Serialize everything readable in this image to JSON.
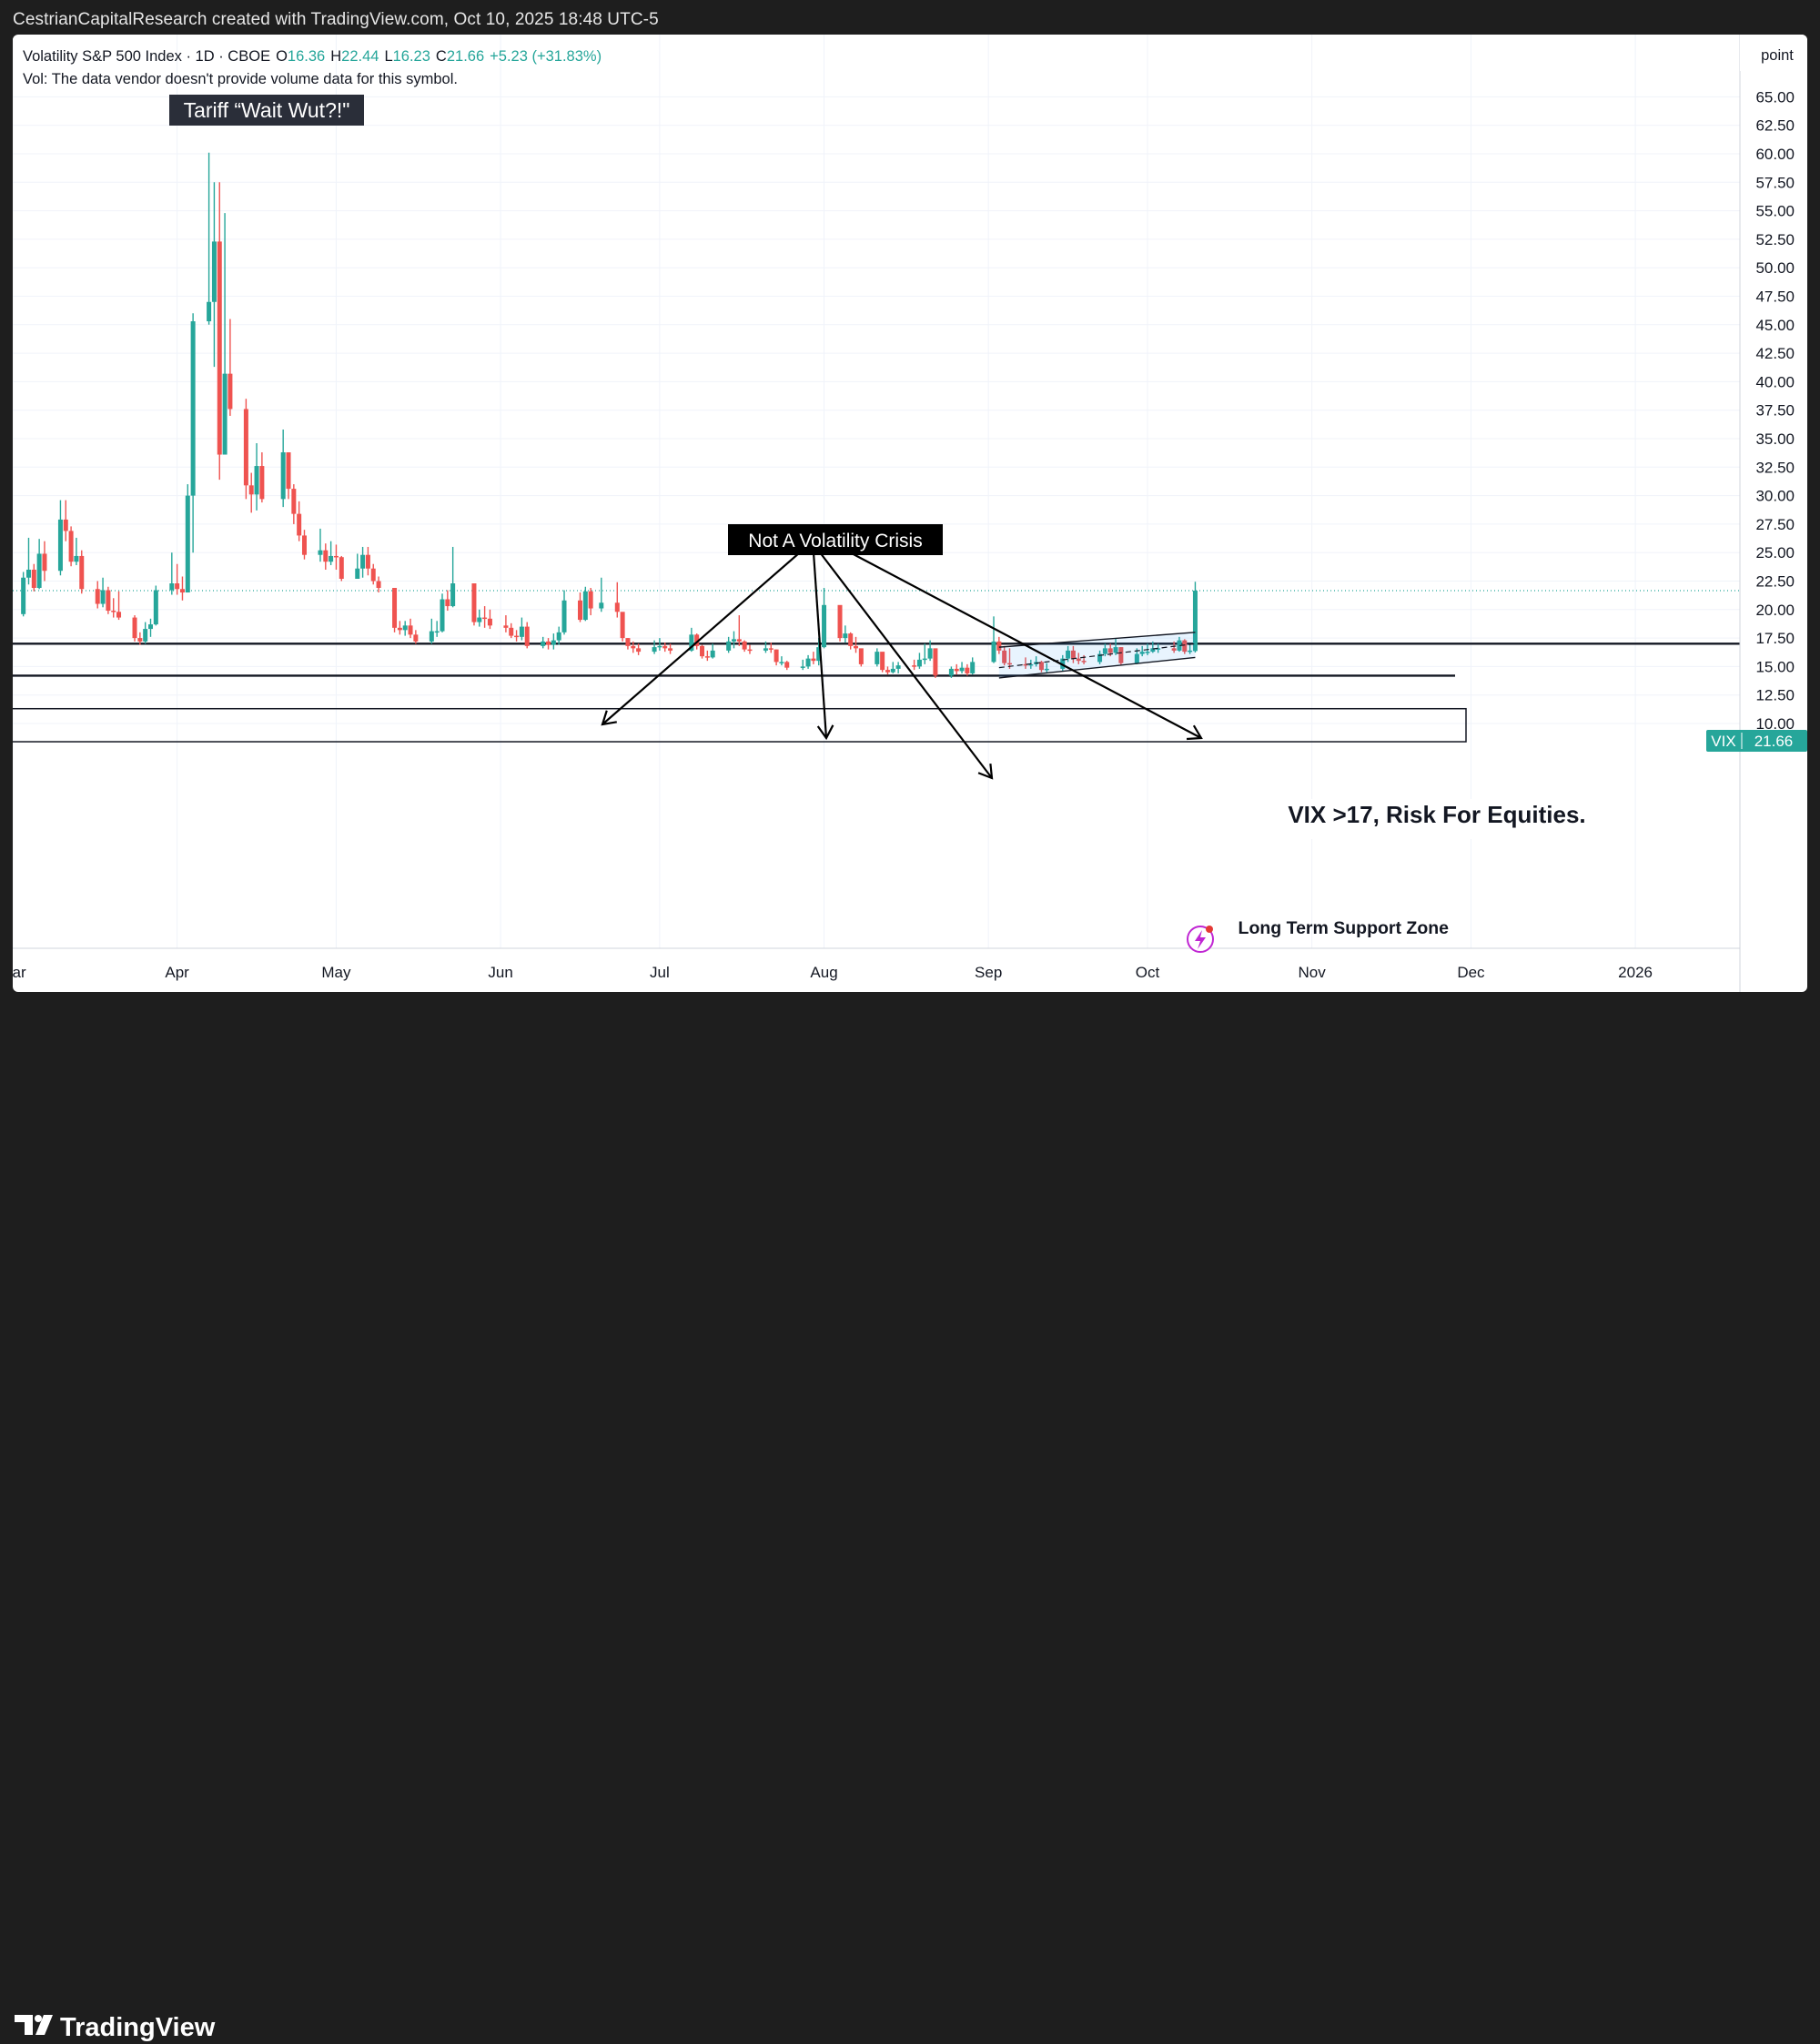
{
  "watermark": "CestrianCapitalResearch created with TradingView.com, Oct 10, 2025 18:48 UTC-5",
  "legend": {
    "symbol": "Volatility S&P 500 Index · 1D · CBOE",
    "o_label": "O",
    "o_value": "16.36",
    "h_label": "H",
    "h_value": "22.44",
    "l_label": "L",
    "l_value": "16.23",
    "c_label": "C",
    "c_value": "21.66",
    "change": "+5.23 (+31.83%)",
    "vol_note": "Vol: The data vendor doesn't provide volume data for this symbol."
  },
  "scale_mode": "point",
  "price_tag": {
    "symbol": "VIX",
    "value": "21.66"
  },
  "annotations": {
    "tariff": "Tariff “Wait Wut?!\"",
    "crisis": "Not A Volatility Crisis",
    "risk": "VIX >17, Risk For Equities.",
    "support": "Long Term Support Zone"
  },
  "brand": "TradingView",
  "colors": {
    "up": "#26a69a",
    "down": "#ef5350",
    "background": "#ffffff",
    "frame": "#1e1e1e",
    "tag": "#26a69a"
  },
  "chart_data": {
    "type": "candlestick",
    "title": "Volatility S&P 500 Index · 1D · CBOE",
    "ylim": [
      8,
      65
    ],
    "y_ticks": [
      "10.00",
      "12.50",
      "15.00",
      "17.50",
      "20.00",
      "22.50",
      "25.00",
      "27.50",
      "30.00",
      "32.50",
      "35.00",
      "37.50",
      "40.00",
      "42.50",
      "45.00",
      "47.50",
      "50.00",
      "52.50",
      "55.00",
      "57.50",
      "60.00",
      "62.50",
      "65.00"
    ],
    "x_ticks": [
      "Mar",
      "Apr",
      "May",
      "Jun",
      "Jul",
      "Aug",
      "Sep",
      "Oct",
      "Nov",
      "Dec",
      "2026"
    ],
    "x_tick_dates": [
      "2025-03-01",
      "2025-04-01",
      "2025-05-01",
      "2025-06-01",
      "2025-07-01",
      "2025-08-01",
      "2025-09-01",
      "2025-10-01",
      "2025-11-01",
      "2025-12-01",
      "2026-01-01"
    ],
    "horizontal_levels": [
      17.0,
      14.2
    ],
    "support_zone": [
      8.4,
      11.3
    ],
    "channel": {
      "upper": [
        [
          "2025-09-03",
          16.7
        ],
        [
          "2025-10-10",
          18.0
        ]
      ],
      "mid": [
        [
          "2025-09-03",
          14.9
        ],
        [
          "2025-10-10",
          17.0
        ]
      ],
      "lower": [
        [
          "2025-09-03",
          14.0
        ],
        [
          "2025-10-10",
          15.8
        ]
      ]
    },
    "candles": [
      [
        "2025-02-28",
        21.5,
        19.6,
        22.0,
        19.3
      ],
      [
        "2025-03-03",
        19.6,
        22.8,
        23.3,
        19.4
      ],
      [
        "2025-03-04",
        22.8,
        23.5,
        26.3,
        22.2
      ],
      [
        "2025-03-05",
        23.5,
        21.9,
        24.0,
        21.6
      ],
      [
        "2025-03-06",
        21.9,
        24.9,
        26.2,
        21.8
      ],
      [
        "2025-03-07",
        24.9,
        23.4,
        26.0,
        22.5
      ],
      [
        "2025-03-10",
        23.4,
        27.9,
        29.6,
        23.0
      ],
      [
        "2025-03-11",
        27.9,
        26.9,
        29.6,
        26.0
      ],
      [
        "2025-03-12",
        26.9,
        24.2,
        27.3,
        23.8
      ],
      [
        "2025-03-13",
        24.2,
        24.7,
        26.3,
        23.9
      ],
      [
        "2025-03-14",
        24.7,
        21.8,
        25.2,
        21.4
      ],
      [
        "2025-03-17",
        21.8,
        20.5,
        22.5,
        20.1
      ],
      [
        "2025-03-18",
        20.5,
        21.7,
        22.8,
        20.2
      ],
      [
        "2025-03-19",
        21.7,
        19.9,
        22.0,
        19.6
      ],
      [
        "2025-03-20",
        19.9,
        19.8,
        21.0,
        19.3
      ],
      [
        "2025-03-21",
        19.8,
        19.3,
        21.6,
        19.1
      ],
      [
        "2025-03-24",
        19.3,
        17.5,
        19.5,
        17.2
      ],
      [
        "2025-03-25",
        17.5,
        17.2,
        18.0,
        16.9
      ],
      [
        "2025-03-26",
        17.2,
        18.3,
        18.9,
        17.0
      ],
      [
        "2025-03-27",
        18.3,
        18.7,
        19.2,
        17.6
      ],
      [
        "2025-03-28",
        18.7,
        21.7,
        22.1,
        18.6
      ],
      [
        "2025-03-31",
        21.7,
        22.3,
        25.0,
        21.3
      ],
      [
        "2025-04-01",
        22.3,
        21.8,
        24.0,
        21.3
      ],
      [
        "2025-04-02",
        21.8,
        21.5,
        22.9,
        20.8
      ],
      [
        "2025-04-03",
        21.5,
        30.0,
        31.0,
        21.5
      ],
      [
        "2025-04-04",
        30.0,
        45.3,
        46.0,
        25.0
      ],
      [
        "2025-04-07",
        45.3,
        47.0,
        60.1,
        45.0
      ],
      [
        "2025-04-08",
        47.0,
        52.3,
        57.5,
        41.3
      ],
      [
        "2025-04-09",
        52.3,
        33.6,
        57.5,
        31.4
      ],
      [
        "2025-04-10",
        33.6,
        40.7,
        54.8,
        33.6
      ],
      [
        "2025-04-11",
        40.7,
        37.6,
        45.5,
        37.0
      ],
      [
        "2025-04-14",
        37.6,
        30.9,
        38.5,
        29.7
      ],
      [
        "2025-04-15",
        30.9,
        30.1,
        32.0,
        28.5
      ],
      [
        "2025-04-16",
        30.1,
        32.6,
        34.6,
        28.7
      ],
      [
        "2025-04-17",
        32.6,
        29.7,
        33.8,
        29.4
      ],
      [
        "2025-04-21",
        29.7,
        33.8,
        35.8,
        29.0
      ],
      [
        "2025-04-22",
        33.8,
        30.6,
        32.5,
        29.7
      ],
      [
        "2025-04-23",
        30.6,
        28.4,
        31.0,
        27.5
      ],
      [
        "2025-04-24",
        28.4,
        26.5,
        29.5,
        26.0
      ],
      [
        "2025-04-25",
        26.5,
        24.8,
        27.0,
        24.4
      ],
      [
        "2025-04-28",
        24.8,
        25.2,
        27.1,
        24.2
      ],
      [
        "2025-04-29",
        25.2,
        24.2,
        25.8,
        23.5
      ],
      [
        "2025-04-30",
        24.2,
        24.7,
        26.0,
        23.9
      ],
      [
        "2025-05-01",
        24.7,
        24.6,
        25.7,
        23.5
      ],
      [
        "2025-05-02",
        24.6,
        22.7,
        24.7,
        22.5
      ],
      [
        "2025-05-05",
        22.7,
        23.6,
        24.9,
        22.7
      ],
      [
        "2025-05-06",
        23.6,
        24.8,
        25.5,
        22.8
      ],
      [
        "2025-05-07",
        24.8,
        23.6,
        25.5,
        23.0
      ],
      [
        "2025-05-08",
        23.6,
        22.5,
        24.0,
        22.2
      ],
      [
        "2025-05-09",
        22.5,
        21.9,
        22.9,
        21.5
      ],
      [
        "2025-05-12",
        21.9,
        18.4,
        19.8,
        18.0
      ],
      [
        "2025-05-13",
        18.4,
        18.2,
        19.0,
        17.8
      ],
      [
        "2025-05-14",
        18.2,
        18.6,
        19.0,
        17.7
      ],
      [
        "2025-05-15",
        18.6,
        17.8,
        19.2,
        17.5
      ],
      [
        "2025-05-16",
        17.8,
        17.2,
        18.2,
        17.0
      ],
      [
        "2025-05-19",
        17.2,
        18.1,
        19.2,
        17.0
      ],
      [
        "2025-05-20",
        18.1,
        18.1,
        19.0,
        17.6
      ],
      [
        "2025-05-21",
        18.1,
        20.9,
        21.4,
        18.0
      ],
      [
        "2025-05-22",
        20.9,
        20.3,
        21.7,
        19.9
      ],
      [
        "2025-05-23",
        20.3,
        22.3,
        25.5,
        20.2
      ],
      [
        "2025-05-27",
        22.3,
        18.9,
        20.5,
        18.6
      ],
      [
        "2025-05-28",
        18.9,
        19.3,
        20.0,
        18.5
      ],
      [
        "2025-05-29",
        19.3,
        19.2,
        20.3,
        18.4
      ],
      [
        "2025-05-30",
        19.2,
        18.6,
        20.0,
        18.3
      ],
      [
        "2025-06-02",
        18.6,
        18.4,
        19.5,
        18.0
      ],
      [
        "2025-06-03",
        18.4,
        17.7,
        18.8,
        17.5
      ],
      [
        "2025-06-04",
        17.7,
        17.6,
        18.2,
        17.2
      ],
      [
        "2025-06-05",
        17.6,
        18.5,
        19.3,
        17.3
      ],
      [
        "2025-06-06",
        18.5,
        16.8,
        18.9,
        16.6
      ],
      [
        "2025-06-09",
        16.8,
        17.2,
        17.6,
        16.6
      ],
      [
        "2025-06-10",
        17.2,
        16.9,
        17.5,
        16.5
      ],
      [
        "2025-06-11",
        16.9,
        17.3,
        17.9,
        16.5
      ],
      [
        "2025-06-12",
        17.3,
        18.0,
        18.5,
        16.9
      ],
      [
        "2025-06-13",
        18.0,
        20.8,
        21.7,
        17.8
      ],
      [
        "2025-06-16",
        20.8,
        19.1,
        21.5,
        18.9
      ],
      [
        "2025-06-17",
        19.1,
        21.6,
        22.0,
        19.0
      ],
      [
        "2025-06-18",
        21.6,
        20.1,
        21.9,
        19.5
      ],
      [
        "2025-06-20",
        20.1,
        20.6,
        22.8,
        19.8
      ],
      [
        "2025-06-23",
        20.6,
        19.8,
        22.4,
        19.3
      ],
      [
        "2025-06-24",
        19.8,
        17.5,
        18.6,
        17.2
      ],
      [
        "2025-06-25",
        17.5,
        16.8,
        17.5,
        16.5
      ],
      [
        "2025-06-26",
        16.8,
        16.6,
        17.2,
        16.2
      ],
      [
        "2025-06-27",
        16.6,
        16.3,
        17.0,
        16.0
      ],
      [
        "2025-06-30",
        16.3,
        16.7,
        17.3,
        16.1
      ],
      [
        "2025-07-01",
        16.7,
        16.8,
        17.5,
        16.4
      ],
      [
        "2025-07-02",
        16.8,
        16.6,
        17.1,
        16.3
      ],
      [
        "2025-07-03",
        16.6,
        16.4,
        17.0,
        16.1
      ],
      [
        "2025-07-07",
        16.4,
        17.8,
        18.4,
        16.3
      ],
      [
        "2025-07-08",
        17.8,
        16.8,
        17.9,
        16.5
      ],
      [
        "2025-07-09",
        16.8,
        15.9,
        16.9,
        15.7
      ],
      [
        "2025-07-10",
        15.9,
        15.8,
        16.4,
        15.5
      ],
      [
        "2025-07-11",
        15.8,
        16.4,
        17.0,
        15.7
      ],
      [
        "2025-07-14",
        16.4,
        17.2,
        17.6,
        16.2
      ],
      [
        "2025-07-15",
        17.2,
        17.4,
        18.1,
        16.6
      ],
      [
        "2025-07-16",
        17.4,
        17.2,
        19.5,
        16.8
      ],
      [
        "2025-07-17",
        17.2,
        16.5,
        17.3,
        16.3
      ],
      [
        "2025-07-18",
        16.5,
        16.4,
        16.9,
        16.1
      ],
      [
        "2025-07-21",
        16.4,
        16.6,
        17.2,
        16.2
      ],
      [
        "2025-07-22",
        16.6,
        16.5,
        17.1,
        16.2
      ],
      [
        "2025-07-23",
        16.5,
        15.4,
        16.5,
        15.1
      ],
      [
        "2025-07-24",
        15.4,
        15.4,
        15.9,
        15.1
      ],
      [
        "2025-07-25",
        15.4,
        14.9,
        15.5,
        14.7
      ],
      [
        "2025-07-28",
        14.9,
        15.0,
        15.6,
        14.7
      ],
      [
        "2025-07-29",
        15.0,
        15.7,
        16.0,
        14.8
      ],
      [
        "2025-07-30",
        15.7,
        15.5,
        16.3,
        15.2
      ],
      [
        "2025-07-31",
        15.5,
        16.7,
        17.5,
        15.1
      ],
      [
        "2025-08-01",
        16.7,
        20.4,
        21.9,
        16.6
      ],
      [
        "2025-08-04",
        20.4,
        17.5,
        19.7,
        17.2
      ],
      [
        "2025-08-05",
        17.5,
        17.9,
        18.6,
        17.1
      ],
      [
        "2025-08-06",
        17.9,
        16.8,
        18.0,
        16.5
      ],
      [
        "2025-08-07",
        16.8,
        16.6,
        17.6,
        16.2
      ],
      [
        "2025-08-08",
        16.6,
        15.2,
        16.5,
        15.0
      ],
      [
        "2025-08-11",
        15.2,
        16.3,
        16.6,
        15.0
      ],
      [
        "2025-08-12",
        16.3,
        14.7,
        15.8,
        14.5
      ],
      [
        "2025-08-13",
        14.7,
        14.5,
        15.0,
        14.3
      ],
      [
        "2025-08-14",
        14.5,
        14.8,
        15.4,
        14.4
      ],
      [
        "2025-08-15",
        14.8,
        15.1,
        15.4,
        14.4
      ],
      [
        "2025-08-18",
        15.1,
        15.0,
        15.6,
        14.7
      ],
      [
        "2025-08-19",
        15.0,
        15.6,
        16.2,
        14.8
      ],
      [
        "2025-08-20",
        15.6,
        15.7,
        17.0,
        15.2
      ],
      [
        "2025-08-21",
        15.7,
        16.6,
        17.3,
        15.5
      ],
      [
        "2025-08-22",
        16.6,
        14.2,
        15.3,
        14.0
      ],
      [
        "2025-08-25",
        14.2,
        14.8,
        15.0,
        14.0
      ],
      [
        "2025-08-26",
        14.8,
        14.6,
        15.2,
        14.3
      ],
      [
        "2025-08-27",
        14.6,
        14.9,
        15.4,
        14.4
      ],
      [
        "2025-08-28",
        14.9,
        14.4,
        15.2,
        14.2
      ],
      [
        "2025-08-29",
        14.4,
        15.4,
        15.8,
        14.3
      ],
      [
        "2025-09-02",
        15.4,
        17.2,
        19.4,
        15.3
      ],
      [
        "2025-09-03",
        17.2,
        16.4,
        17.6,
        16.1
      ],
      [
        "2025-09-04",
        16.4,
        15.3,
        16.8,
        15.1
      ],
      [
        "2025-09-05",
        15.3,
        15.2,
        16.6,
        14.8
      ],
      [
        "2025-09-08",
        15.2,
        15.1,
        15.8,
        14.8
      ],
      [
        "2025-09-09",
        15.1,
        15.2,
        15.6,
        14.8
      ],
      [
        "2025-09-10",
        15.2,
        15.4,
        15.9,
        15.0
      ],
      [
        "2025-09-11",
        15.4,
        14.7,
        15.5,
        14.5
      ],
      [
        "2025-09-12",
        14.7,
        14.8,
        15.3,
        14.5
      ],
      [
        "2025-09-15",
        14.8,
        15.7,
        16.0,
        14.6
      ],
      [
        "2025-09-16",
        15.7,
        16.4,
        16.8,
        15.4
      ],
      [
        "2025-09-17",
        16.4,
        15.7,
        16.8,
        15.3
      ],
      [
        "2025-09-18",
        15.7,
        15.5,
        16.2,
        15.2
      ],
      [
        "2025-09-19",
        15.5,
        15.4,
        16.0,
        15.2
      ],
      [
        "2025-09-22",
        15.4,
        16.1,
        16.4,
        15.2
      ],
      [
        "2025-09-23",
        16.1,
        16.6,
        17.0,
        15.9
      ],
      [
        "2025-09-24",
        16.6,
        16.2,
        17.0,
        15.9
      ],
      [
        "2025-09-25",
        16.2,
        16.7,
        17.5,
        16.0
      ],
      [
        "2025-09-26",
        16.7,
        15.3,
        16.7,
        15.1
      ],
      [
        "2025-09-29",
        15.3,
        16.1,
        16.6,
        15.2
      ],
      [
        "2025-09-30",
        16.1,
        16.3,
        16.8,
        15.9
      ],
      [
        "2025-10-01",
        16.3,
        16.3,
        17.0,
        16.0
      ],
      [
        "2025-10-02",
        16.3,
        16.6,
        17.2,
        16.2
      ],
      [
        "2025-10-03",
        16.6,
        16.6,
        17.0,
        16.2
      ],
      [
        "2025-10-06",
        16.6,
        16.4,
        17.2,
        16.2
      ],
      [
        "2025-10-07",
        16.4,
        17.3,
        17.6,
        16.3
      ],
      [
        "2025-10-08",
        17.3,
        16.3,
        17.4,
        16.1
      ],
      [
        "2025-10-09",
        16.3,
        16.4,
        16.9,
        16.1
      ],
      [
        "2025-10-10",
        16.36,
        21.66,
        22.44,
        16.23
      ]
    ]
  }
}
